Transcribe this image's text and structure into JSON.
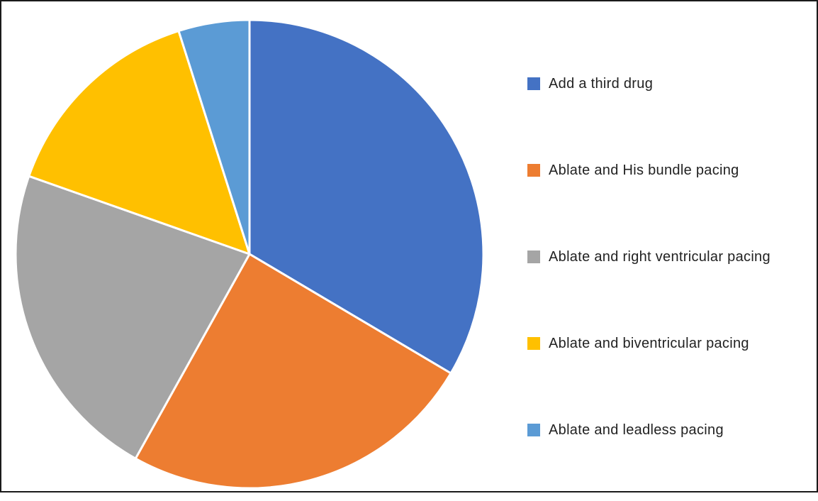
{
  "chart_data": {
    "type": "pie",
    "title": "",
    "start_angle_deg": 0,
    "direction": "clockwise",
    "legend_position": "right",
    "series": [
      {
        "name": "Add a third drug",
        "value": 33.5,
        "color": "#4472C4"
      },
      {
        "name": "Ablate and His bundle pacing",
        "value": 24.6,
        "color": "#ED7D31"
      },
      {
        "name": "Ablate and right ventricular pacing",
        "value": 22.3,
        "color": "#A5A5A5"
      },
      {
        "name": "Ablate and biventricular pacing",
        "value": 14.7,
        "color": "#FFC000"
      },
      {
        "name": "Ablate and leadless pacing",
        "value": 4.9,
        "color": "#5B9BD5"
      }
    ]
  }
}
